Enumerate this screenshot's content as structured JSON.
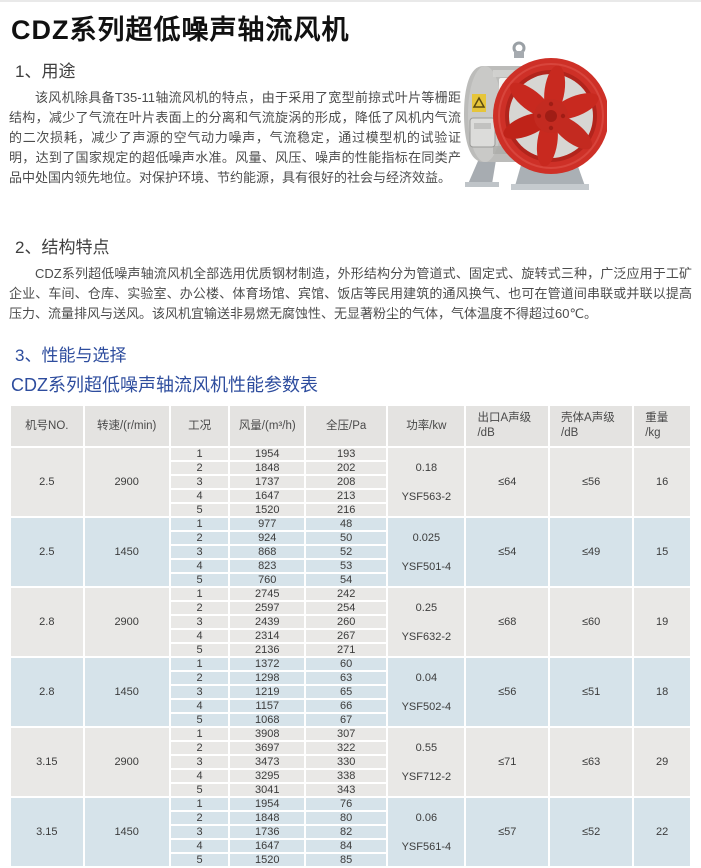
{
  "title": "CDZ系列超低噪声轴流风机",
  "sections": {
    "usage": {
      "heading": "1、用途",
      "body": "该风机除具备T35-11轴流风机的特点，由于采用了宽型前掠式叶片等栅距结构，减少了气流在叶片表面上的分离和气流旋涡的形成，降低了风机内气流的二次损耗，减少了声源的空气动力噪声，气流稳定，通过模型机的试验证明，达到了国家规定的超低噪声水准。风量、风压、噪声的性能指标在同类产品中处国内领先地位。对保护环境、节约能源，具有很好的社会与经济效益。"
    },
    "structure": {
      "heading": "2、结构特点",
      "body": "CDZ系列超低噪声轴流风机全部选用优质钢材制造，外形结构分为管道式、固定式、旋转式三种，广泛应用于工矿企业、车间、仓库、实验室、办公楼、体育场馆、宾馆、饭店等民用建筑的通风换气、也可在管道间串联或并联以提高压力、流量排风与送风。该风机宜输送非易燃无腐蚀性、无显著粉尘的气体，气体温度不得超过60℃。"
    },
    "performance": {
      "heading": "3、性能与选择",
      "table_title": "CDZ系列超低噪声轴流风机性能参数表"
    }
  },
  "fan_image": {
    "name": "axial-fan-product-photo",
    "colors": {
      "ring_red": "#ce3027",
      "blade_red": "#c8291f",
      "body_gray": "#bcbcba",
      "foot_gray": "#aab0b5",
      "warning_yellow": "#e6c53a"
    }
  },
  "table": {
    "headers": [
      {
        "text": "机号NO.",
        "align": "center"
      },
      {
        "text": "转速/(r/min)",
        "align": "center"
      },
      {
        "text": "工况",
        "align": "center"
      },
      {
        "text": "风量/(m³/h)",
        "align": "center"
      },
      {
        "text": "全压/Pa",
        "align": "center"
      },
      {
        "text": "功率/kw",
        "align": "center"
      },
      {
        "text": "出口A声级\n/dB",
        "align": "left"
      },
      {
        "text": "壳体A声级\n/dB",
        "align": "left"
      },
      {
        "text": "重量\n/kg",
        "align": "left"
      }
    ],
    "groups": [
      {
        "model": "2.5",
        "speed": "2900",
        "tint": "gray",
        "conditions": [
          "1",
          "2",
          "3",
          "4",
          "5"
        ],
        "airflow": [
          "1954",
          "1848",
          "1737",
          "1647",
          "1520"
        ],
        "pressure": [
          "193",
          "202",
          "208",
          "213",
          "216"
        ],
        "power": "0.18",
        "motor": "YSF563-2",
        "outlet_noise": "≤64",
        "casing_noise": "≤56",
        "weight": "16"
      },
      {
        "model": "2.5",
        "speed": "1450",
        "tint": "blue",
        "conditions": [
          "1",
          "2",
          "3",
          "4",
          "5"
        ],
        "airflow": [
          "977",
          "924",
          "868",
          "823",
          "760"
        ],
        "pressure": [
          "48",
          "50",
          "52",
          "53",
          "54"
        ],
        "power": "0.025",
        "motor": "YSF501-4",
        "outlet_noise": "≤54",
        "casing_noise": "≤49",
        "weight": "15"
      },
      {
        "model": "2.8",
        "speed": "2900",
        "tint": "gray",
        "conditions": [
          "1",
          "2",
          "3",
          "4",
          "5"
        ],
        "airflow": [
          "2745",
          "2597",
          "2439",
          "2314",
          "2136"
        ],
        "pressure": [
          "242",
          "254",
          "260",
          "267",
          "271"
        ],
        "power": "0.25",
        "motor": "YSF632-2",
        "outlet_noise": "≤68",
        "casing_noise": "≤60",
        "weight": "19"
      },
      {
        "model": "2.8",
        "speed": "1450",
        "tint": "blue",
        "conditions": [
          "1",
          "2",
          "3",
          "4",
          "5"
        ],
        "airflow": [
          "1372",
          "1298",
          "1219",
          "1157",
          "1068"
        ],
        "pressure": [
          "60",
          "63",
          "65",
          "66",
          "67"
        ],
        "power": "0.04",
        "motor": "YSF502-4",
        "outlet_noise": "≤56",
        "casing_noise": "≤51",
        "weight": "18"
      },
      {
        "model": "3.15",
        "speed": "2900",
        "tint": "gray",
        "conditions": [
          "1",
          "2",
          "3",
          "4",
          "5"
        ],
        "airflow": [
          "3908",
          "3697",
          "3473",
          "3295",
          "3041"
        ],
        "pressure": [
          "307",
          "322",
          "330",
          "338",
          "343"
        ],
        "power": "0.55",
        "motor": "YSF712-2",
        "outlet_noise": "≤71",
        "casing_noise": "≤63",
        "weight": "29"
      },
      {
        "model": "3.15",
        "speed": "1450",
        "tint": "blue",
        "conditions": [
          "1",
          "2",
          "3",
          "4",
          "5"
        ],
        "airflow": [
          "1954",
          "1848",
          "1736",
          "1647",
          "1520"
        ],
        "pressure": [
          "76",
          "80",
          "82",
          "84",
          "85"
        ],
        "power": "0.06",
        "motor": "YSF561-4",
        "outlet_noise": "≤57",
        "casing_noise": "≤52",
        "weight": "22"
      }
    ]
  },
  "colors": {
    "accent_blue": "#2e4d9e",
    "header_gray": "#e4e3e1",
    "row_gray": "#e9e8e6",
    "row_blue": "#d6e3ea",
    "text_dark": "#3c3c3c"
  }
}
